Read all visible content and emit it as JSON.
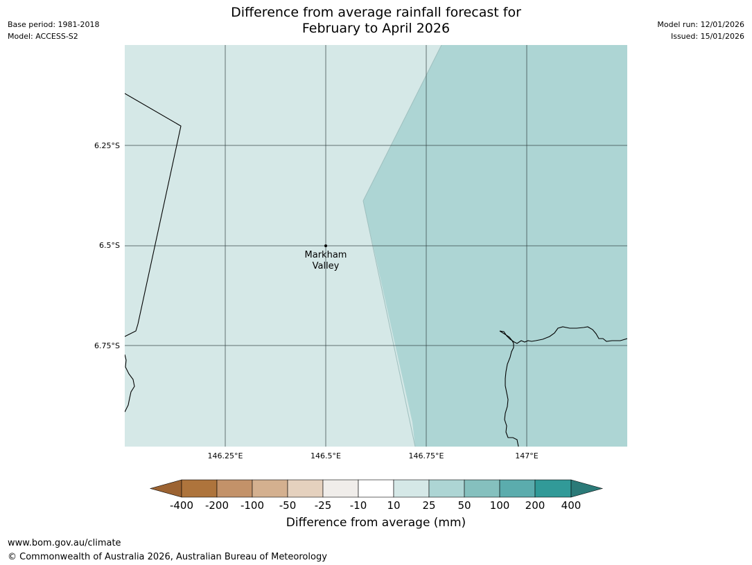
{
  "header": {
    "base_period": "Base period: 1981-2018",
    "model": "Model: ACCESS-S2",
    "title_line1": "Difference from average rainfall forecast for",
    "title_line2": "February to April 2026",
    "model_run": "Model run: 12/01/2026",
    "issued": "Issued: 15/01/2026"
  },
  "map": {
    "lat_labels": [
      "6.25°S",
      "6.5°S",
      "6.75°S"
    ],
    "lon_labels": [
      "146.25°E",
      "146.5°E",
      "146.75°E",
      "147°E"
    ],
    "place": {
      "name_line1": "Markham",
      "name_line2": "Valley"
    },
    "region_colors": {
      "light": "#d5e8e7",
      "medium": "#add5d4"
    }
  },
  "colorbar": {
    "tick_labels": [
      "-400",
      "-200",
      "-100",
      "-50",
      "-25",
      "-10",
      "10",
      "25",
      "50",
      "100",
      "200",
      "400"
    ],
    "colors": [
      "#9c6332",
      "#ae743c",
      "#c39269",
      "#d4b08f",
      "#e5d1be",
      "#f0edea",
      "#ffffff",
      "#d5e8e7",
      "#add5d4",
      "#85c0be",
      "#5bacad",
      "#319a98",
      "#2b7a78"
    ],
    "label": "Difference from average (mm)"
  },
  "footer": {
    "url": "www.bom.gov.au/climate",
    "copyright": "© Commonwealth of Australia 2026, Australian Bureau of Meteorology"
  }
}
